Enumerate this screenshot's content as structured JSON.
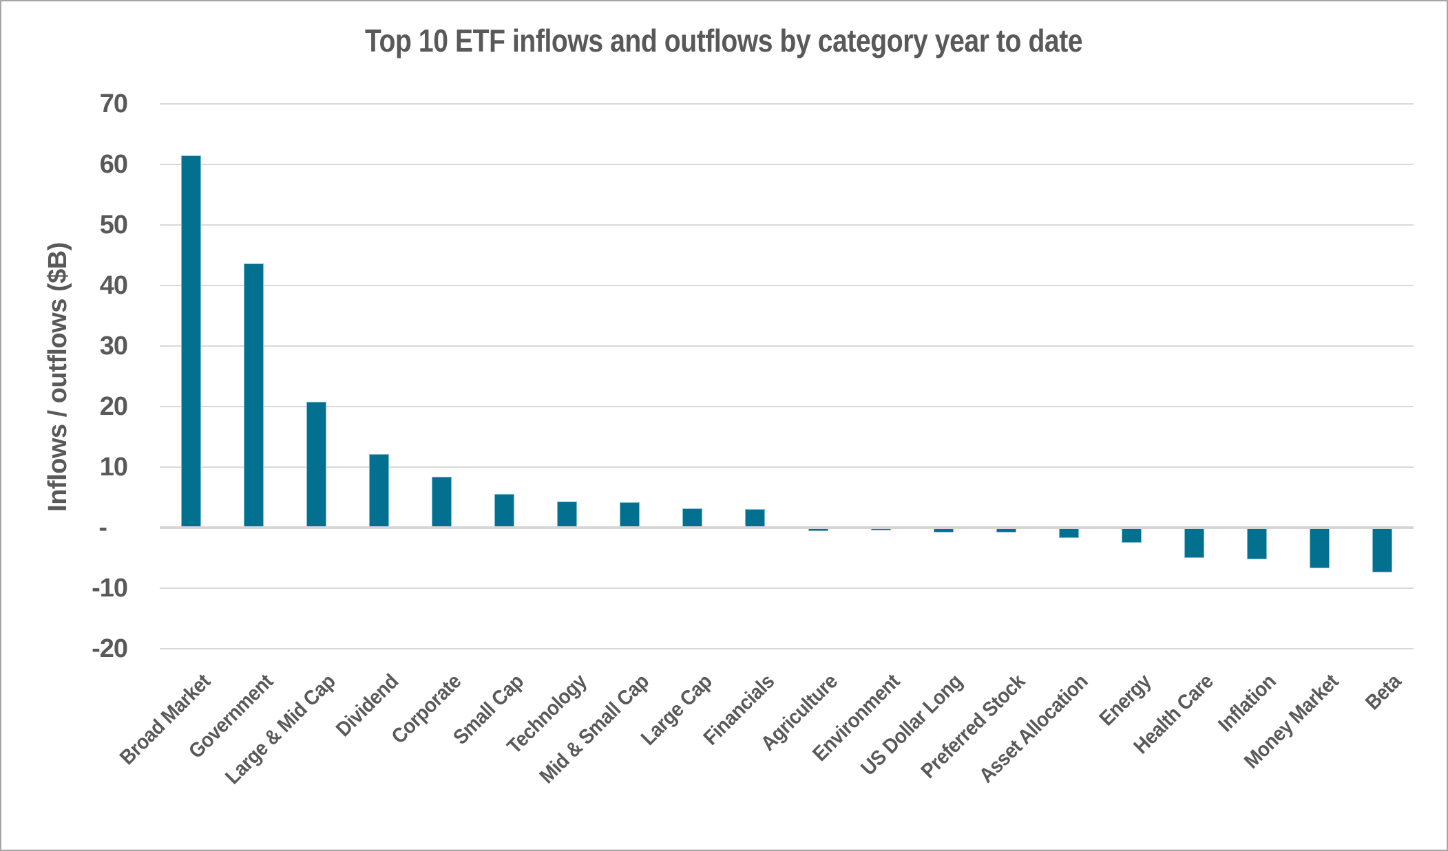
{
  "title": "Top 10 ETF inflows and outflows by category year to date",
  "colors": {
    "bar_fill": "#02708e",
    "bar_edge": "#94cbdd",
    "text": "#595959",
    "gridline": "#d9d9d9",
    "zero_line": "#d6d6d6",
    "canvas_border": "#a6a6a6"
  },
  "chart_data": {
    "type": "bar",
    "title": "Top 10 ETF inflows and outflows by category year to date",
    "xlabel": "",
    "ylabel": "Inflows / outflows ($B)",
    "ylim": [
      -20,
      70
    ],
    "grid": true,
    "legend": false,
    "categories": [
      "Broad Market",
      "Government",
      "Large & Mid Cap",
      "Dividend",
      "Corporate",
      "Small Cap",
      "Technology",
      "Mid & Small Cap",
      "Large Cap",
      "Financials",
      "Agriculture",
      "Environment",
      "US Dollar Long",
      "Preferred Stock",
      "Asset Allocation",
      "Energy",
      "Health Care",
      "Inflation",
      "Money Market",
      "Beta"
    ],
    "values": [
      61.5,
      43.6,
      20.8,
      12.2,
      8.4,
      5.6,
      4.3,
      4.2,
      3.2,
      3.1,
      -0.6,
      -0.5,
      -0.8,
      -0.8,
      -1.7,
      -2.5,
      -5.0,
      -5.2,
      -6.7,
      -7.4
    ],
    "y_ticks": [
      {
        "label": "70",
        "value": 70
      },
      {
        "label": "60",
        "value": 60
      },
      {
        "label": "50",
        "value": 50
      },
      {
        "label": "40",
        "value": 40
      },
      {
        "label": "30",
        "value": 30
      },
      {
        "label": "20",
        "value": 20
      },
      {
        "label": "10",
        "value": 10
      },
      {
        "label": "-",
        "value": 0
      },
      {
        "label": "-10",
        "value": -10
      },
      {
        "label": "-20",
        "value": -20
      }
    ]
  }
}
